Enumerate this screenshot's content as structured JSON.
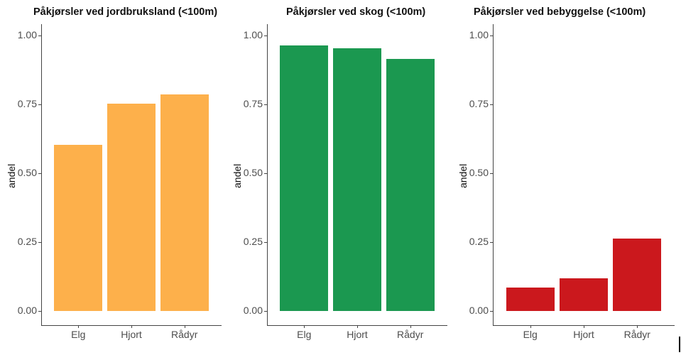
{
  "chart_data": [
    {
      "type": "bar",
      "title": "Påkjørsler ved jordbruksland (<100m)",
      "xlabel": "",
      "ylabel": "andel",
      "categories": [
        "Elg",
        "Hjort",
        "Rådyr"
      ],
      "values": [
        0.603,
        0.753,
        0.786
      ],
      "ylim": [
        0,
        1
      ],
      "yticks": [
        "0.00",
        "0.25",
        "0.50",
        "0.75",
        "1.00"
      ],
      "color": "#FDB04B",
      "grid": false
    },
    {
      "type": "bar",
      "title": "Påkjørsler ved skog (<100m)",
      "xlabel": "",
      "ylabel": "andel",
      "categories": [
        "Elg",
        "Hjort",
        "Rådyr"
      ],
      "values": [
        0.964,
        0.954,
        0.915
      ],
      "ylim": [
        0,
        1
      ],
      "yticks": [
        "0.00",
        "0.25",
        "0.50",
        "0.75",
        "1.00"
      ],
      "color": "#1B9850",
      "grid": false
    },
    {
      "type": "bar",
      "title": "Påkjørsler ved bebyggelse (<100m)",
      "xlabel": "",
      "ylabel": "andel",
      "categories": [
        "Elg",
        "Hjort",
        "Rådyr"
      ],
      "values": [
        0.085,
        0.119,
        0.263
      ],
      "ylim": [
        0,
        1
      ],
      "yticks": [
        "0.00",
        "0.25",
        "0.50",
        "0.75",
        "1.00"
      ],
      "color": "#CB181D",
      "grid": false
    }
  ]
}
